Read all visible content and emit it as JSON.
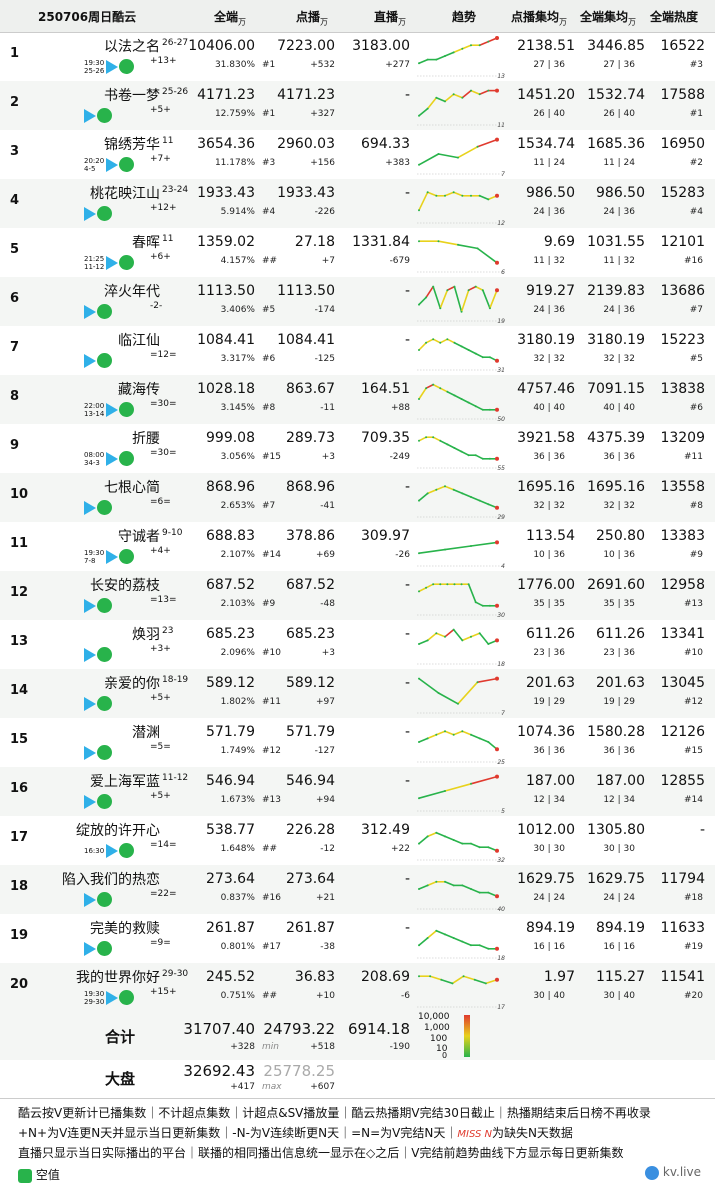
{
  "header": {
    "title": "250706周日酷云",
    "col_all": "全端",
    "col_vod": "点播",
    "col_live": "直播",
    "col_trend": "趋势",
    "col_vod_avg": "点播集均",
    "col_all_avg": "全端集均",
    "col_heat": "全端热度",
    "unit": "万"
  },
  "rows": [
    {
      "rank": "1",
      "name": "以法之名",
      "ep": "26-27",
      "time": "19:30",
      "date": "25-26",
      "chg": "+13+",
      "all": "10406.00",
      "share": "31.830%",
      "vod": "7223.00",
      "vod_rank": "#1",
      "vod_chg": "+532",
      "live": "3183.00",
      "live_chg": "+277",
      "vod_avg": "2138.51",
      "vod_avg_sub": "27 | 36",
      "all_avg": "3446.85",
      "all_avg_sub": "27 | 36",
      "heat": "16522",
      "heat_rank": "#3",
      "trend_end": "13",
      "trend": [
        3,
        4,
        4,
        5,
        6,
        7,
        8,
        8,
        9,
        10
      ]
    },
    {
      "rank": "2",
      "name": "书卷一梦",
      "ep": "25-26",
      "time": "",
      "date": "",
      "chg": "+5+",
      "all": "4171.23",
      "share": "12.759%",
      "vod": "4171.23",
      "vod_rank": "#1",
      "vod_chg": "+327",
      "live": "-",
      "live_chg": "",
      "vod_avg": "1451.20",
      "vod_avg_sub": "26 | 40",
      "all_avg": "1532.74",
      "all_avg_sub": "26 | 40",
      "heat": "17588",
      "heat_rank": "#1",
      "trend_end": "11",
      "trend": [
        2,
        4,
        7,
        6,
        8,
        7,
        9,
        8,
        9,
        9
      ]
    },
    {
      "rank": "3",
      "name": "锦绣芳华",
      "ep": "11",
      "time": "20:20",
      "date": "4-5",
      "chg": "+7+",
      "all": "3654.36",
      "share": "11.178%",
      "vod": "2960.03",
      "vod_rank": "#3",
      "vod_chg": "+156",
      "live": "694.33",
      "live_chg": "+383",
      "vod_avg": "1534.74",
      "vod_avg_sub": "11 | 24",
      "all_avg": "1685.36",
      "all_avg_sub": "11 | 24",
      "heat": "16950",
      "heat_rank": "#2",
      "trend_end": "7",
      "trend": [
        2,
        5,
        4,
        7,
        9
      ]
    },
    {
      "rank": "4",
      "name": "桃花映江山",
      "ep": "23-24",
      "time": "",
      "date": "",
      "chg": "+12+",
      "all": "1933.43",
      "share": "5.914%",
      "vod": "1933.43",
      "vod_rank": "#4",
      "vod_chg": "-226",
      "live": "-",
      "live_chg": "",
      "vod_avg": "986.50",
      "vod_avg_sub": "24 | 36",
      "all_avg": "986.50",
      "all_avg_sub": "24 | 36",
      "heat": "15283",
      "heat_rank": "#4",
      "trend_end": "12",
      "trend": [
        3,
        8,
        7,
        7,
        8,
        7,
        7,
        7,
        6,
        7
      ]
    },
    {
      "rank": "5",
      "name": "春晖",
      "ep": "11",
      "time": "21:25",
      "date": "11-12",
      "chg": "+6+",
      "all": "1359.02",
      "share": "4.157%",
      "vod": "27.18",
      "vod_rank": "##",
      "vod_chg": "+7",
      "live": "1331.84",
      "live_chg": "-679",
      "vod_avg": "9.69",
      "vod_avg_sub": "11 | 32",
      "all_avg": "1031.55",
      "all_avg_sub": "11 | 32",
      "heat": "12101",
      "heat_rank": "#16",
      "trend_end": "6",
      "trend": [
        8,
        8,
        7,
        6,
        2
      ]
    },
    {
      "rank": "6",
      "name": "淬火年代",
      "ep": "",
      "time": "",
      "date": "",
      "chg": "-2-",
      "all": "1113.50",
      "share": "3.406%",
      "vod": "1113.50",
      "vod_rank": "#5",
      "vod_chg": "-174",
      "live": "-",
      "live_chg": "",
      "vod_avg": "919.27",
      "vod_avg_sub": "24 | 36",
      "all_avg": "2139.83",
      "all_avg_sub": "24 | 36",
      "heat": "13686",
      "heat_rank": "#7",
      "trend_end": "19",
      "trend": [
        4,
        6,
        9,
        3,
        8,
        9,
        2,
        8,
        9,
        8,
        3,
        8
      ]
    },
    {
      "rank": "7",
      "name": "临江仙",
      "ep": "",
      "time": "",
      "date": "",
      "chg": "=12=",
      "all": "1084.41",
      "share": "3.317%",
      "vod": "1084.41",
      "vod_rank": "#6",
      "vod_chg": "-125",
      "live": "-",
      "live_chg": "",
      "vod_avg": "3180.19",
      "vod_avg_sub": "32 | 32",
      "all_avg": "3180.19",
      "all_avg_sub": "32 | 32",
      "heat": "15223",
      "heat_rank": "#5",
      "trend_end": "31",
      "trend": [
        5,
        7,
        8,
        7,
        8,
        7,
        6,
        5,
        4,
        3,
        3,
        2
      ]
    },
    {
      "rank": "8",
      "name": "藏海传",
      "ep": "",
      "time": "22:00",
      "date": "13-14",
      "chg": "=30=",
      "all": "1028.18",
      "share": "3.145%",
      "vod": "863.67",
      "vod_rank": "#8",
      "vod_chg": "-11",
      "live": "164.51",
      "live_chg": "+88",
      "vod_avg": "4757.46",
      "vod_avg_sub": "40 | 40",
      "all_avg": "7091.15",
      "all_avg_sub": "40 | 40",
      "heat": "13838",
      "heat_rank": "#6",
      "trend_end": "50",
      "trend": [
        5,
        8,
        9,
        8,
        7,
        6,
        5,
        4,
        3,
        2,
        2,
        2
      ]
    },
    {
      "rank": "9",
      "name": "折腰",
      "ep": "",
      "time": "08:00",
      "date": "34-3",
      "chg": "=30=",
      "all": "999.08",
      "share": "3.056%",
      "vod": "289.73",
      "vod_rank": "#15",
      "vod_chg": "+3",
      "live": "709.35",
      "live_chg": "-249",
      "vod_avg": "3921.58",
      "vod_avg_sub": "36 | 36",
      "all_avg": "4375.39",
      "all_avg_sub": "36 | 36",
      "heat": "13209",
      "heat_rank": "#11",
      "trend_end": "55",
      "trend": [
        7,
        8,
        8,
        7,
        6,
        5,
        4,
        3,
        3,
        2,
        2,
        2
      ]
    },
    {
      "rank": "10",
      "name": "七根心简",
      "ep": "",
      "time": "",
      "date": "",
      "chg": "=6=",
      "all": "868.96",
      "share": "2.653%",
      "vod": "868.96",
      "vod_rank": "#7",
      "vod_chg": "-41",
      "live": "-",
      "live_chg": "",
      "vod_avg": "1695.16",
      "vod_avg_sub": "32 | 32",
      "all_avg": "1695.16",
      "all_avg_sub": "32 | 32",
      "heat": "13558",
      "heat_rank": "#8",
      "trend_end": "29",
      "trend": [
        4,
        6,
        7,
        8,
        7,
        6,
        5,
        4,
        3,
        2
      ]
    },
    {
      "rank": "11",
      "name": "守诚者",
      "ep": "9-10",
      "time": "19:30",
      "date": "7-8",
      "chg": "+4+",
      "all": "688.83",
      "share": "2.107%",
      "vod": "378.86",
      "vod_rank": "#14",
      "vod_chg": "+69",
      "live": "309.97",
      "live_chg": "-26",
      "vod_avg": "113.54",
      "vod_avg_sub": "10 | 36",
      "all_avg": "250.80",
      "all_avg_sub": "10 | 36",
      "heat": "13383",
      "heat_rank": "#9",
      "trend_end": "4",
      "trend": [
        3,
        4,
        5,
        6
      ]
    },
    {
      "rank": "12",
      "name": "长安的荔枝",
      "ep": "",
      "time": "",
      "date": "",
      "chg": "=13=",
      "all": "687.52",
      "share": "2.103%",
      "vod": "687.52",
      "vod_rank": "#9",
      "vod_chg": "-48",
      "live": "-",
      "live_chg": "",
      "vod_avg": "1776.00",
      "vod_avg_sub": "35 | 35",
      "all_avg": "2691.60",
      "all_avg_sub": "35 | 35",
      "heat": "12958",
      "heat_rank": "#13",
      "trend_end": "30",
      "trend": [
        6,
        7,
        8,
        8,
        8,
        8,
        8,
        8,
        3,
        2,
        2,
        2
      ]
    },
    {
      "rank": "13",
      "name": "焕羽",
      "ep": "23",
      "time": "",
      "date": "",
      "chg": "+3+",
      "all": "685.23",
      "share": "2.096%",
      "vod": "685.23",
      "vod_rank": "#10",
      "vod_chg": "+3",
      "live": "-",
      "live_chg": "",
      "vod_avg": "611.26",
      "vod_avg_sub": "23 | 36",
      "all_avg": "611.26",
      "all_avg_sub": "23 | 36",
      "heat": "13341",
      "heat_rank": "#10",
      "trend_end": "18",
      "trend": [
        5,
        6,
        8,
        7,
        9,
        6,
        7,
        8,
        5,
        6
      ]
    },
    {
      "rank": "14",
      "name": "亲爱的你",
      "ep": "18-19",
      "time": "",
      "date": "",
      "chg": "+5+",
      "all": "589.12",
      "share": "1.802%",
      "vod": "589.12",
      "vod_rank": "#11",
      "vod_chg": "+97",
      "live": "-",
      "live_chg": "",
      "vod_avg": "201.63",
      "vod_avg_sub": "19 | 29",
      "all_avg": "201.63",
      "all_avg_sub": "19 | 29",
      "heat": "13045",
      "heat_rank": "#12",
      "trend_end": "7",
      "trend": [
        9,
        5,
        2,
        8,
        9
      ]
    },
    {
      "rank": "15",
      "name": "潜渊",
      "ep": "",
      "time": "",
      "date": "",
      "chg": "=5=",
      "all": "571.79",
      "share": "1.749%",
      "vod": "571.79",
      "vod_rank": "#12",
      "vod_chg": "-127",
      "live": "-",
      "live_chg": "",
      "vod_avg": "1074.36",
      "vod_avg_sub": "36 | 36",
      "all_avg": "1580.28",
      "all_avg_sub": "36 | 36",
      "heat": "12126",
      "heat_rank": "#15",
      "trend_end": "25",
      "trend": [
        5,
        6,
        7,
        8,
        7,
        8,
        7,
        6,
        5,
        3
      ]
    },
    {
      "rank": "16",
      "name": "爱上海军蓝",
      "ep": "11-12",
      "time": "",
      "date": "",
      "chg": "+5+",
      "all": "546.94",
      "share": "1.673%",
      "vod": "546.94",
      "vod_rank": "#13",
      "vod_chg": "+94",
      "live": "-",
      "live_chg": "",
      "vod_avg": "187.00",
      "vod_avg_sub": "12 | 34",
      "all_avg": "187.00",
      "all_avg_sub": "12 | 34",
      "heat": "12855",
      "heat_rank": "#14",
      "trend_end": "5",
      "trend": [
        3,
        5,
        7,
        9
      ]
    },
    {
      "rank": "17",
      "name": "绽放的许开心",
      "ep": "",
      "time": "16:30",
      "date": "",
      "chg": "=14=",
      "all": "538.77",
      "share": "1.648%",
      "vod": "226.28",
      "vod_rank": "##",
      "vod_chg": "-12",
      "live": "312.49",
      "live_chg": "+22",
      "vod_avg": "1012.00",
      "vod_avg_sub": "30 | 30",
      "all_avg": "1305.80",
      "all_avg_sub": "30 | 30",
      "heat": "-",
      "heat_rank": "",
      "trend_end": "32",
      "trend": [
        4,
        6,
        7,
        6,
        5,
        4,
        4,
        3,
        3,
        2
      ]
    },
    {
      "rank": "18",
      "name": "陷入我们的热恋",
      "ep": "",
      "time": "",
      "date": "",
      "chg": "=22=",
      "all": "273.64",
      "share": "0.837%",
      "vod": "273.64",
      "vod_rank": "#16",
      "vod_chg": "+21",
      "live": "-",
      "live_chg": "",
      "vod_avg": "1629.75",
      "vod_avg_sub": "24 | 24",
      "all_avg": "1629.75",
      "all_avg_sub": "24 | 24",
      "heat": "11794",
      "heat_rank": "#18",
      "trend_end": "40",
      "trend": [
        5,
        6,
        7,
        7,
        6,
        6,
        5,
        4,
        4,
        3
      ]
    },
    {
      "rank": "19",
      "name": "完美的救赎",
      "ep": "",
      "time": "",
      "date": "",
      "chg": "=9=",
      "all": "261.87",
      "share": "0.801%",
      "vod": "261.87",
      "vod_rank": "#17",
      "vod_chg": "-38",
      "live": "-",
      "live_chg": "",
      "vod_avg": "894.19",
      "vod_avg_sub": "16 | 16",
      "all_avg": "894.19",
      "all_avg_sub": "16 | 16",
      "heat": "11633",
      "heat_rank": "#19",
      "trend_end": "18",
      "trend": [
        3,
        5,
        7,
        6,
        5,
        4,
        3,
        3,
        2,
        2
      ]
    },
    {
      "rank": "20",
      "name": "我的世界你好",
      "ep": "29-30",
      "time": "19:30",
      "date": "29-30",
      "chg": "+15+",
      "all": "245.52",
      "share": "0.751%",
      "vod": "36.83",
      "vod_rank": "##",
      "vod_chg": "+10",
      "live": "208.69",
      "live_chg": "-6",
      "vod_avg": "1.97",
      "vod_avg_sub": "30 | 40",
      "all_avg": "115.27",
      "all_avg_sub": "30 | 40",
      "heat": "11541",
      "heat_rank": "#20",
      "trend_end": "17",
      "trend": [
        8,
        8,
        7,
        6,
        8,
        7,
        6,
        7
      ]
    }
  ],
  "total": {
    "label": "合计",
    "all": "31707.40",
    "all_chg": "+328",
    "vod": "24793.22",
    "vod_note": "min",
    "vod_chg": "+518",
    "live": "6914.18",
    "live_chg": "-190"
  },
  "market": {
    "label": "大盘",
    "all": "32692.43",
    "all_chg": "+417",
    "vod": "25778.25",
    "vod_note": "max",
    "vod_chg": "+607"
  },
  "legend": {
    "max": "10,000",
    "mid1": "1,000",
    "mid2": "100",
    "mid3": "10",
    "min": "0"
  },
  "footer": {
    "line1": "酷云按V更新计已播集数｜不计超点集数｜计超点&SV播放量｜酷云热播期V完结30日截止｜热播期结束后日榜不再收录",
    "line2": "+N+为V连更N天并显示当日更新集数｜-N-为V连续断更N天｜=N=为V完结N天｜",
    "line2_miss": "MISS N",
    "line2_b": "为缺失N天数据",
    "line3": "直播只显示当日实际播出的平台｜联播的相同播出信息统一显示在◇之后｜V完结前趋势曲线下方显示每日更新集数",
    "brand": "空值",
    "watermark": "kv.live"
  },
  "colors": {
    "green": "#28b34b",
    "yellow": "#e8d21c",
    "red": "#e03a2e"
  },
  "chart_data": {
    "type": "table",
    "title": "250706周日酷云",
    "columns": [
      "全端",
      "点播",
      "直播",
      "点播集均",
      "全端集均",
      "全端热度"
    ],
    "unit": "万",
    "rows": [
      [
        "以法之名",
        10406.0,
        7223.0,
        3183.0,
        2138.51,
        3446.85,
        16522
      ],
      [
        "书卷一梦",
        4171.23,
        4171.23,
        null,
        1451.2,
        1532.74,
        17588
      ],
      [
        "锦绣芳华",
        3654.36,
        2960.03,
        694.33,
        1534.74,
        1685.36,
        16950
      ],
      [
        "桃花映江山",
        1933.43,
        1933.43,
        null,
        986.5,
        986.5,
        15283
      ],
      [
        "春晖",
        1359.02,
        27.18,
        1331.84,
        9.69,
        1031.55,
        12101
      ],
      [
        "淬火年代",
        1113.5,
        1113.5,
        null,
        919.27,
        2139.83,
        13686
      ],
      [
        "临江仙",
        1084.41,
        1084.41,
        null,
        3180.19,
        3180.19,
        15223
      ],
      [
        "藏海传",
        1028.18,
        863.67,
        164.51,
        4757.46,
        7091.15,
        13838
      ],
      [
        "折腰",
        999.08,
        289.73,
        709.35,
        3921.58,
        4375.39,
        13209
      ],
      [
        "七根心简",
        868.96,
        868.96,
        null,
        1695.16,
        1695.16,
        13558
      ],
      [
        "守诚者",
        688.83,
        378.86,
        309.97,
        113.54,
        250.8,
        13383
      ],
      [
        "长安的荔枝",
        687.52,
        687.52,
        null,
        1776.0,
        2691.6,
        12958
      ],
      [
        "焕羽",
        685.23,
        685.23,
        null,
        611.26,
        611.26,
        13341
      ],
      [
        "亲爱的你",
        589.12,
        589.12,
        null,
        201.63,
        201.63,
        13045
      ],
      [
        "潜渊",
        571.79,
        571.79,
        null,
        1074.36,
        1580.28,
        12126
      ],
      [
        "爱上海军蓝",
        546.94,
        546.94,
        null,
        187.0,
        187.0,
        12855
      ],
      [
        "绽放的许开心",
        538.77,
        226.28,
        312.49,
        1012.0,
        1305.8,
        null
      ],
      [
        "陷入我们的热恋",
        273.64,
        273.64,
        null,
        1629.75,
        1629.75,
        11794
      ],
      [
        "完美的救赎",
        261.87,
        261.87,
        null,
        894.19,
        894.19,
        11633
      ],
      [
        "我的世界你好",
        245.52,
        36.83,
        208.69,
        1.97,
        115.27,
        11541
      ]
    ]
  }
}
